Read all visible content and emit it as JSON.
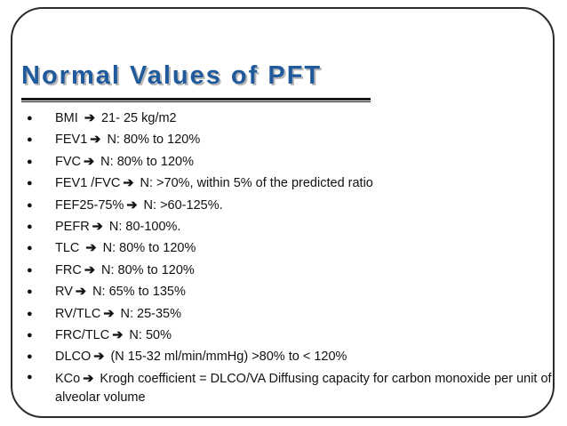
{
  "slide": {
    "title": "Normal Values of PFT",
    "arrow_glyph": "➔",
    "items": [
      {
        "pre": "BMI ",
        "post": " 21- 25 kg/m2"
      },
      {
        "pre": "FEV1",
        "post": " N: 80% to 120%"
      },
      {
        "pre": "FVC",
        "post": " N: 80% to 120%"
      },
      {
        "pre": "FEV1 /FVC",
        "post": " N: >70%, within 5% of the predicted ratio"
      },
      {
        "pre": "FEF25-75%",
        "post": " N: >60-125%."
      },
      {
        "pre": "PEFR",
        "post": " N: 80-100%."
      },
      {
        "pre": "TLC ",
        "post": " N: 80% to 120%"
      },
      {
        "pre": "FRC",
        "post": " N: 80% to 120%"
      },
      {
        "pre": "RV",
        "post": "  N: 65% to 135%"
      },
      {
        "pre": "RV/TLC",
        "post": " N: 25-35%"
      },
      {
        "pre": "FRC/TLC",
        "post": " N: 50%"
      },
      {
        "pre": "DLCO",
        "post": " (N 15-32 ml/min/mmHg) >80% to < 120%"
      },
      {
        "pre": "KCo",
        "post": " Krogh coefficient = DLCO/VA Diffusing capacity for carbon monoxide per unit of alveolar volume"
      }
    ]
  }
}
